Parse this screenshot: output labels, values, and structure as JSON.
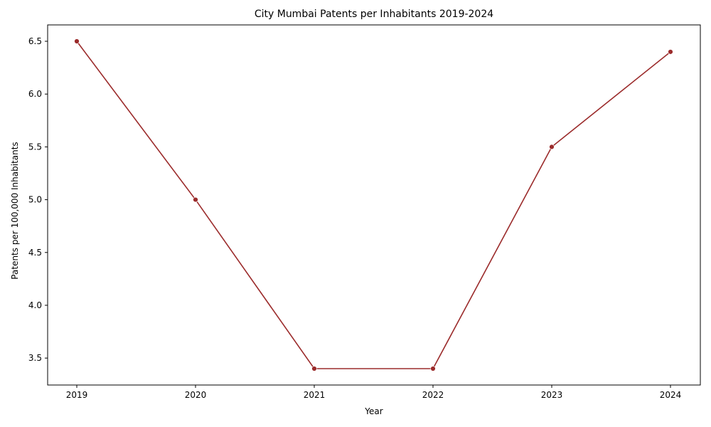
{
  "chart_data": {
    "type": "line",
    "title": "City Mumbai Patents per Inhabitants 2019-2024",
    "xlabel": "Year",
    "ylabel": "Patents per 100,000 Inhabitants",
    "x": [
      "2019",
      "2020",
      "2021",
      "2022",
      "2023",
      "2024"
    ],
    "series": [
      {
        "values": [
          6.5,
          5.0,
          3.4,
          3.4,
          5.5,
          6.4
        ],
        "color": "#9b2b2b"
      }
    ],
    "yticks": [
      "3.5",
      "4.0",
      "4.5",
      "5.0",
      "5.5",
      "6.0",
      "6.5"
    ],
    "ylim": [
      3.245,
      6.655
    ],
    "grid": false,
    "markers": true
  }
}
